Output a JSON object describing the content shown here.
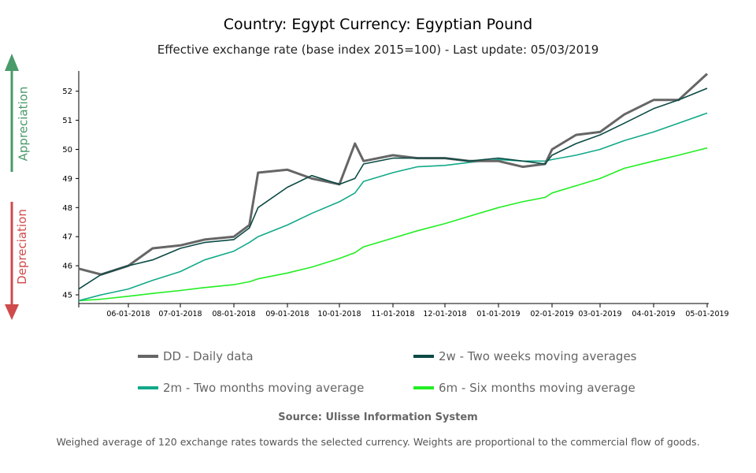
{
  "header": {
    "title": "Country: Egypt Currency: Egyptian Pound",
    "subtitle": "Effective exchange rate (base index 2015=100) - Last update: 05/03/2019"
  },
  "side_arrows": {
    "up_label": "Appreciation",
    "up_color": "#4a9a6a",
    "down_label": "Depreciation",
    "down_color": "#d04b4b"
  },
  "legend": [
    {
      "label": "DD - Daily data",
      "color": "#666666"
    },
    {
      "label": "2w - Two weeks moving averages",
      "color": "#0b4a45"
    },
    {
      "label": "2m - Two months moving average",
      "color": "#12a98a"
    },
    {
      "label": "6m - Six months moving average",
      "color": "#22ee22"
    }
  ],
  "footer": {
    "source": "Source: Ulisse Information System",
    "note": "Weighed average of 120 exchange rates towards the selected currency. Weights are proportional to the commercial flow of goods."
  },
  "chart_data": {
    "type": "line",
    "title": "Country: Egypt Currency: Egyptian Pound",
    "subtitle": "Effective exchange rate (base index 2015=100) - Last update: 05/03/2019",
    "xlabel": "",
    "ylabel": "",
    "ylim": [
      44.8,
      52.6
    ],
    "yticks": [
      45,
      46,
      47,
      48,
      49,
      50,
      51,
      52
    ],
    "xticks": [
      "06-01-2018",
      "07-01-2018",
      "08-01-2018",
      "09-01-2018",
      "10-01-2018",
      "11-01-2018",
      "12-01-2018",
      "01-01-2019",
      "02-01-2019",
      "03-01-2019",
      "04-01-2019",
      "05-01-2019"
    ],
    "grid": false,
    "legend_position": "bottom",
    "x": [
      "05-01-2018",
      "05-15-2018",
      "06-01-2018",
      "06-15-2018",
      "07-01-2018",
      "07-15-2018",
      "08-01-2018",
      "08-10-2018",
      "08-15-2018",
      "09-01-2018",
      "09-15-2018",
      "10-01-2018",
      "10-10-2018",
      "10-15-2018",
      "11-01-2018",
      "11-15-2018",
      "12-01-2018",
      "12-15-2018",
      "01-01-2019",
      "01-15-2019",
      "01-28-2019",
      "02-01-2019",
      "02-15-2019",
      "03-01-2019",
      "03-15-2019",
      "04-01-2019",
      "04-15-2019",
      "05-01-2019"
    ],
    "series": [
      {
        "name": "DD - Daily data",
        "values": [
          45.9,
          45.7,
          46.0,
          46.6,
          46.7,
          46.9,
          47.0,
          47.4,
          49.2,
          49.3,
          49.0,
          48.8,
          50.2,
          49.6,
          49.8,
          49.7,
          49.7,
          49.6,
          49.6,
          49.4,
          49.5,
          50.0,
          50.5,
          50.6,
          51.2,
          51.7,
          51.7,
          52.6
        ]
      },
      {
        "name": "2w - Two weeks moving averages",
        "values": [
          45.2,
          45.7,
          46.0,
          46.2,
          46.6,
          46.8,
          46.9,
          47.3,
          48.0,
          48.7,
          49.1,
          48.8,
          49.0,
          49.5,
          49.7,
          49.7,
          49.7,
          49.6,
          49.7,
          49.6,
          49.5,
          49.8,
          50.2,
          50.5,
          50.9,
          51.4,
          51.7,
          52.1
        ]
      },
      {
        "name": "2m - Two months moving average",
        "values": [
          44.8,
          45.0,
          45.2,
          45.5,
          45.8,
          46.2,
          46.5,
          46.8,
          47.0,
          47.4,
          47.8,
          48.2,
          48.5,
          48.9,
          49.2,
          49.4,
          49.45,
          49.55,
          49.65,
          49.6,
          49.6,
          49.65,
          49.8,
          50.0,
          50.3,
          50.6,
          50.9,
          51.25
        ]
      },
      {
        "name": "6m - Six months moving average",
        "values": [
          44.8,
          44.85,
          44.95,
          45.05,
          45.15,
          45.25,
          45.35,
          45.45,
          45.55,
          45.75,
          45.95,
          46.25,
          46.45,
          46.65,
          46.95,
          47.2,
          47.45,
          47.7,
          48.0,
          48.2,
          48.35,
          48.5,
          48.75,
          49.0,
          49.35,
          49.6,
          49.8,
          50.05
        ]
      }
    ]
  }
}
